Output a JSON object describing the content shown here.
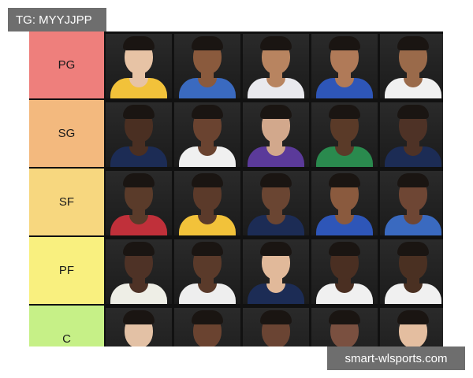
{
  "overlay": {
    "tag_label": "TG: MYYJJPP",
    "watermark": "smart-wlsports.com"
  },
  "tiers": [
    {
      "label": "PG",
      "color": "#ee7f7c",
      "players": [
        {
          "skin": "#e7c3a5",
          "jersey": "#f2c23a"
        },
        {
          "skin": "#8a5a3d",
          "jersey": "#3a6ac0"
        },
        {
          "skin": "#b88460",
          "jersey": "#e9e9ee"
        },
        {
          "skin": "#b07a58",
          "jersey": "#2e56b8"
        },
        {
          "skin": "#9a6a4a",
          "jersey": "#f0f0f0"
        }
      ]
    },
    {
      "label": "SG",
      "color": "#f3b97e",
      "players": [
        {
          "skin": "#4a2f22",
          "jersey": "#1c2c55"
        },
        {
          "skin": "#6a4330",
          "jersey": "#f0f0f0"
        },
        {
          "skin": "#d2a88c",
          "jersey": "#5b3a9a"
        },
        {
          "skin": "#5a3a28",
          "jersey": "#2a8a4e"
        },
        {
          "skin": "#4e3226",
          "jersey": "#1c2c55"
        }
      ]
    },
    {
      "label": "SF",
      "color": "#f7d77f",
      "players": [
        {
          "skin": "#5a3b2a",
          "jersey": "#c0303a"
        },
        {
          "skin": "#5b3a2a",
          "jersey": "#f2c23a"
        },
        {
          "skin": "#6a4532",
          "jersey": "#1c2c55"
        },
        {
          "skin": "#8a5a3e",
          "jersey": "#2e56b8"
        },
        {
          "skin": "#6e4634",
          "jersey": "#3a6ac0"
        }
      ]
    },
    {
      "label": "PF",
      "color": "#f9f07f",
      "players": [
        {
          "skin": "#4e3226",
          "jersey": "#eeeee6"
        },
        {
          "skin": "#5a3a2a",
          "jersey": "#eeeeee"
        },
        {
          "skin": "#e1b99a",
          "jersey": "#1c2c55"
        },
        {
          "skin": "#4a2f22",
          "jersey": "#f0f0f0"
        },
        {
          "skin": "#4a3022",
          "jersey": "#f0f0f0"
        }
      ]
    },
    {
      "label": "C",
      "color": "#c6f087",
      "players": [
        {
          "skin": "#e3c1a5",
          "jersey": "#3a6ac0"
        },
        {
          "skin": "#6a4330",
          "jersey": "#c0303a"
        },
        {
          "skin": "#6a4433",
          "jersey": "#1c2c55"
        },
        {
          "skin": "#7a5040",
          "jersey": "#1c2c55"
        },
        {
          "skin": "#e4bea0",
          "jersey": "#f0f0f0"
        }
      ]
    }
  ]
}
